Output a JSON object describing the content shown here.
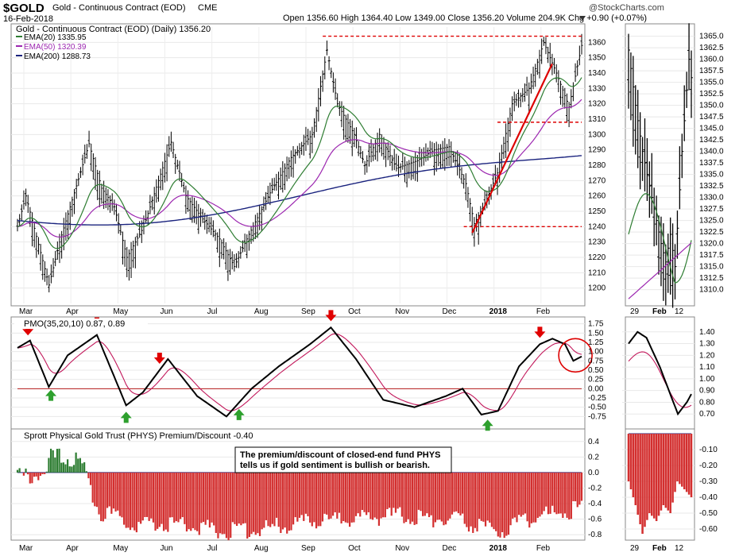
{
  "header": {
    "symbol": "$GOLD",
    "name": "Gold - Continuous Contract (EOD)",
    "exchange": "CME",
    "date": "16-Feb-2018",
    "stats": "Open 1356.60  High 1364.40  Low 1349.00  Close 1356.20  Volume 204.9K  Chg +0.90 (+0.07%)",
    "watermark": "@StockCharts.com"
  },
  "colors": {
    "ema20": "#2e7d32",
    "ema50": "#9c27b0",
    "ema200": "#1a237e",
    "pmo": "#000000",
    "pmo_signal": "#c2185b",
    "bar_pos": "#2e7d32",
    "bar_neg": "#d32f2f",
    "annot": "#dd0000",
    "arrow_up": "#2ea02e",
    "arrow_down": "#e00000"
  },
  "chart_data": [
    {
      "type": "ohlc",
      "title": "Gold - Continuous Contract (EOD) (Daily) 1356.20",
      "legend": [
        "EMA(20) 1335.95",
        "EMA(50) 1320.39",
        "EMA(200) 1288.73"
      ],
      "ylim": [
        1190,
        1370
      ],
      "yticks": [
        1200,
        1210,
        1220,
        1230,
        1240,
        1250,
        1260,
        1270,
        1280,
        1290,
        1300,
        1310,
        1320,
        1330,
        1340,
        1350,
        1360
      ],
      "x_month_labels": [
        "Mar",
        "Apr",
        "May",
        "Jun",
        "Jul",
        "Aug",
        "Sep",
        "Oct",
        "Nov",
        "Dec",
        "2018",
        "Feb"
      ],
      "key_points": [
        {
          "x": 0,
          "y": 1240
        },
        {
          "x": 4,
          "y": 1260
        },
        {
          "x": 15,
          "y": 1202
        },
        {
          "x": 20,
          "y": 1230
        },
        {
          "x": 34,
          "y": 1294
        },
        {
          "x": 40,
          "y": 1265
        },
        {
          "x": 46,
          "y": 1253
        },
        {
          "x": 52,
          "y": 1220
        },
        {
          "x": 60,
          "y": 1240
        },
        {
          "x": 67,
          "y": 1270
        },
        {
          "x": 73,
          "y": 1295
        },
        {
          "x": 80,
          "y": 1260
        },
        {
          "x": 88,
          "y": 1245
        },
        {
          "x": 96,
          "y": 1232
        },
        {
          "x": 103,
          "y": 1214
        },
        {
          "x": 110,
          "y": 1235
        },
        {
          "x": 120,
          "y": 1262
        },
        {
          "x": 130,
          "y": 1285
        },
        {
          "x": 140,
          "y": 1300
        },
        {
          "x": 147,
          "y": 1355
        },
        {
          "x": 152,
          "y": 1320
        },
        {
          "x": 160,
          "y": 1300
        },
        {
          "x": 165,
          "y": 1280
        },
        {
          "x": 172,
          "y": 1300
        },
        {
          "x": 180,
          "y": 1278
        },
        {
          "x": 190,
          "y": 1283
        },
        {
          "x": 198,
          "y": 1290
        },
        {
          "x": 205,
          "y": 1292
        },
        {
          "x": 213,
          "y": 1268
        },
        {
          "x": 217,
          "y": 1242
        },
        {
          "x": 222,
          "y": 1255
        },
        {
          "x": 228,
          "y": 1275
        },
        {
          "x": 235,
          "y": 1320
        },
        {
          "x": 243,
          "y": 1330
        },
        {
          "x": 250,
          "y": 1360
        },
        {
          "x": 256,
          "y": 1340
        },
        {
          "x": 262,
          "y": 1318
        },
        {
          "x": 268,
          "y": 1358
        }
      ],
      "lines": [
        {
          "type": "horizontal",
          "y": 1364
        },
        {
          "type": "horizontal",
          "y": 1308
        },
        {
          "type": "horizontal",
          "y": 1240
        },
        {
          "type": "trend",
          "x1": 216,
          "y1": 1236,
          "x2": 254,
          "y2": 1346
        }
      ]
    },
    {
      "type": "ohlc",
      "title": "",
      "ylim": [
        1307,
        1367
      ],
      "yticks": [
        1310,
        1312.5,
        1315,
        1317.5,
        1320,
        1322.5,
        1325,
        1327.5,
        1330,
        1332.5,
        1335,
        1337.5,
        1340,
        1342.5,
        1345,
        1347.5,
        1350,
        1352.5,
        1355,
        1357.5,
        1360,
        1362.5,
        1365
      ],
      "x_labels": [
        "29",
        "Feb",
        "12"
      ],
      "key_points": [
        {
          "x": 0,
          "y": 1362
        },
        {
          "x": 3,
          "y": 1350
        },
        {
          "x": 6,
          "y": 1340
        },
        {
          "x": 10,
          "y": 1330
        },
        {
          "x": 14,
          "y": 1320
        },
        {
          "x": 16,
          "y": 1316
        },
        {
          "x": 18,
          "y": 1322
        },
        {
          "x": 20,
          "y": 1315
        },
        {
          "x": 23,
          "y": 1340
        },
        {
          "x": 26,
          "y": 1360
        },
        {
          "x": 27,
          "y": 1356
        }
      ]
    },
    {
      "type": "line",
      "title": "PMO(35,20,10) 0.87, 0.89",
      "ylim": [
        -1.0,
        1.85
      ],
      "yticks": [
        -0.75,
        -0.5,
        -0.25,
        0.0,
        0.25,
        0.5,
        0.75,
        1.0,
        1.25,
        1.5,
        1.75
      ],
      "key_points": [
        {
          "x": 0,
          "y": 1.1
        },
        {
          "x": 6,
          "y": 1.3
        },
        {
          "x": 15,
          "y": 0.05
        },
        {
          "x": 24,
          "y": 0.9
        },
        {
          "x": 38,
          "y": 1.45
        },
        {
          "x": 52,
          "y": -0.45
        },
        {
          "x": 60,
          "y": -0.1
        },
        {
          "x": 72,
          "y": 0.8
        },
        {
          "x": 86,
          "y": -0.2
        },
        {
          "x": 100,
          "y": -0.75
        },
        {
          "x": 112,
          "y": 0.0
        },
        {
          "x": 125,
          "y": 0.6
        },
        {
          "x": 140,
          "y": 1.2
        },
        {
          "x": 150,
          "y": 1.65
        },
        {
          "x": 162,
          "y": 0.8
        },
        {
          "x": 175,
          "y": -0.3
        },
        {
          "x": 190,
          "y": -0.5
        },
        {
          "x": 205,
          "y": -0.2
        },
        {
          "x": 213,
          "y": 0.0
        },
        {
          "x": 222,
          "y": -0.7
        },
        {
          "x": 230,
          "y": -0.6
        },
        {
          "x": 240,
          "y": 0.6
        },
        {
          "x": 250,
          "y": 1.2
        },
        {
          "x": 256,
          "y": 1.35
        },
        {
          "x": 262,
          "y": 1.2
        },
        {
          "x": 266,
          "y": 0.75
        },
        {
          "x": 270,
          "y": 0.87
        }
      ],
      "arrows_down_x": [
        5,
        38,
        68,
        150,
        250
      ],
      "arrows_up_x": [
        16,
        52,
        106,
        225
      ]
    },
    {
      "type": "line",
      "title": "",
      "ylim": [
        0.6,
        1.5
      ],
      "yticks": [
        0.7,
        0.8,
        0.9,
        1.0,
        1.1,
        1.2,
        1.3,
        1.4
      ],
      "key_points": [
        {
          "x": 0,
          "y": 1.3
        },
        {
          "x": 4,
          "y": 1.4
        },
        {
          "x": 8,
          "y": 1.35
        },
        {
          "x": 14,
          "y": 1.1
        },
        {
          "x": 18,
          "y": 0.9
        },
        {
          "x": 22,
          "y": 0.7
        },
        {
          "x": 26,
          "y": 0.8
        },
        {
          "x": 28,
          "y": 0.87
        }
      ]
    },
    {
      "type": "bar",
      "title": "Sprott Physical Gold Trust (PHYS) Premium/Discount -0.40",
      "annotation": "The premium/discount of closed-end fund PHYS tells us if gold sentiment is bullish or bearish.",
      "ylim": [
        -0.85,
        0.5
      ],
      "yticks": [
        -0.8,
        -0.6,
        -0.4,
        -0.2,
        0.0,
        0.2,
        0.4
      ],
      "key_points": [
        {
          "x": 0,
          "y": 0.0
        },
        {
          "x": 14,
          "y": 0.05
        },
        {
          "x": 16,
          "y": 0.25
        },
        {
          "x": 26,
          "y": 0.25
        },
        {
          "x": 32,
          "y": 0.1
        },
        {
          "x": 34,
          "y": -0.1
        },
        {
          "x": 40,
          "y": -0.45
        },
        {
          "x": 55,
          "y": -0.6
        },
        {
          "x": 80,
          "y": -0.6
        },
        {
          "x": 100,
          "y": -0.7
        },
        {
          "x": 120,
          "y": -0.65
        },
        {
          "x": 150,
          "y": -0.55
        },
        {
          "x": 180,
          "y": -0.5
        },
        {
          "x": 210,
          "y": -0.55
        },
        {
          "x": 230,
          "y": -0.7
        },
        {
          "x": 250,
          "y": -0.5
        },
        {
          "x": 270,
          "y": -0.4
        }
      ]
    },
    {
      "type": "bar",
      "title": "",
      "ylim": [
        -0.66,
        0.0
      ],
      "yticks": [
        -0.6,
        -0.5,
        -0.4,
        -0.3,
        -0.2,
        -0.1
      ],
      "key_points": [
        {
          "x": 0,
          "y": -0.3
        },
        {
          "x": 3,
          "y": -0.45
        },
        {
          "x": 6,
          "y": -0.63
        },
        {
          "x": 9,
          "y": -0.5
        },
        {
          "x": 12,
          "y": -0.55
        },
        {
          "x": 15,
          "y": -0.45
        },
        {
          "x": 18,
          "y": -0.5
        },
        {
          "x": 21,
          "y": -0.3
        },
        {
          "x": 24,
          "y": -0.35
        },
        {
          "x": 27,
          "y": -0.4
        }
      ]
    }
  ]
}
